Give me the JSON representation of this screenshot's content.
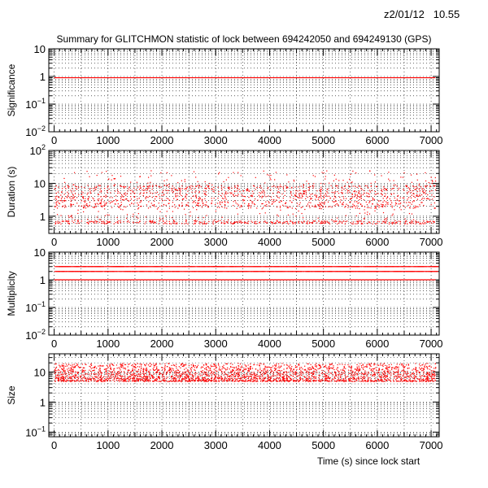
{
  "header": {
    "date_stamp": "z2/01/12   10.55",
    "title": "Summary for GLITCHMON statistic of lock between 694242050 and 694249130 (GPS)",
    "x_axis_label": "Time (s) since lock start"
  },
  "colors": {
    "points": "#ff0000",
    "axis": "#000000",
    "grid": "#000000",
    "background": "#ffffff"
  },
  "x_ticks": [
    "0",
    "1000",
    "2000",
    "3000",
    "4000",
    "5000",
    "6000",
    "7000"
  ],
  "chart_data": [
    {
      "type": "scatter",
      "ylabel": "Significance",
      "xlim": [
        -100,
        7150
      ],
      "ylim": [
        0.01,
        10
      ],
      "yscale": "log",
      "grid": true,
      "y_tick_labels": [
        {
          "value": 10,
          "label": "10"
        },
        {
          "value": 1,
          "label": "1"
        },
        {
          "value": 0.1,
          "label": "10",
          "exp": "−1"
        },
        {
          "value": 0.01,
          "label": "10",
          "exp": "−2"
        }
      ],
      "pattern": "constant",
      "level": 0.9,
      "x_range": [
        0,
        7080
      ]
    },
    {
      "type": "scatter",
      "ylabel": "Duration (s)",
      "xlim": [
        -100,
        7150
      ],
      "ylim": [
        0.3,
        100
      ],
      "yscale": "log",
      "grid": true,
      "y_tick_labels": [
        {
          "value": 100,
          "label": "10",
          "exp": "2"
        },
        {
          "value": 10,
          "label": "10"
        },
        {
          "value": 1,
          "label": "1"
        }
      ],
      "pattern": "scatter",
      "y_range": [
        0.6,
        25
      ],
      "x_range": [
        0,
        7080
      ],
      "n_points": 1800
    },
    {
      "type": "scatter",
      "ylabel": "Multiplicity",
      "xlim": [
        -100,
        7150
      ],
      "ylim": [
        0.01,
        10
      ],
      "yscale": "log",
      "grid": true,
      "y_tick_labels": [
        {
          "value": 10,
          "label": "10"
        },
        {
          "value": 1,
          "label": "1"
        },
        {
          "value": 0.1,
          "label": "10",
          "exp": "−1"
        },
        {
          "value": 0.01,
          "label": "10",
          "exp": "−2"
        }
      ],
      "pattern": "levels",
      "levels": [
        1,
        2,
        3
      ],
      "x_range": [
        0,
        7080
      ]
    },
    {
      "type": "scatter",
      "ylabel": "Size",
      "xlim": [
        -100,
        7150
      ],
      "ylim": [
        0.07,
        40
      ],
      "yscale": "log",
      "grid": true,
      "y_tick_labels": [
        {
          "value": 10,
          "label": "10"
        },
        {
          "value": 1,
          "label": "1"
        },
        {
          "value": 0.1,
          "label": "10",
          "exp": "−1"
        }
      ],
      "pattern": "band",
      "y_range": [
        5,
        20
      ],
      "x_range": [
        0,
        7080
      ],
      "n_points": 2600
    }
  ]
}
